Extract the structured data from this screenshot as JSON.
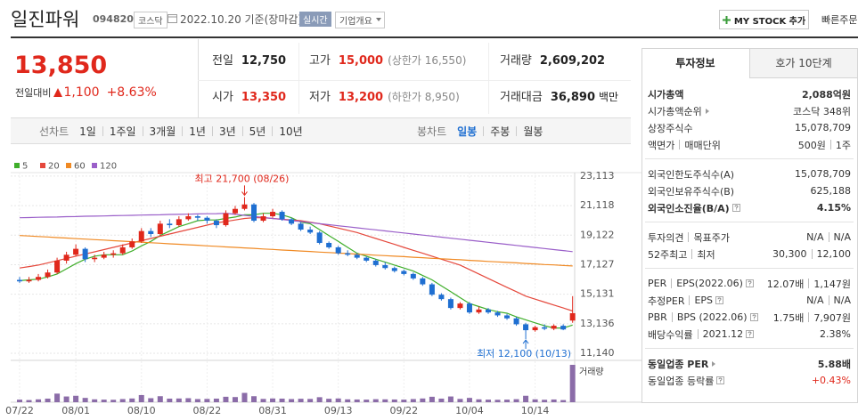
{
  "header": {
    "name": "일진파워",
    "code": "094820",
    "market": "코스닥",
    "date": "2022.10.20 기준(장마감)",
    "realtime": "실시간",
    "company": "기업개요",
    "mystock": "MY STOCK 추가",
    "quick_order": "빠른주문"
  },
  "quote": {
    "price": "13,850",
    "change_label": "전일대비",
    "change": "1,100",
    "change_rate": "+8.63%",
    "items": [
      {
        "label": "전일",
        "value": "12,750"
      },
      {
        "label": "고가",
        "value": "15,000",
        "note": "(상한가 16,550)",
        "up": true
      },
      {
        "label": "거래량",
        "value": "2,609,202"
      },
      {
        "label": "시가",
        "value": "13,350",
        "up": true
      },
      {
        "label": "저가",
        "value": "13,200",
        "note": "(하한가 8,950)",
        "up": true
      },
      {
        "label": "거래대금",
        "value": "36,890",
        "unit": "백만"
      }
    ]
  },
  "toolbar": {
    "line_chart_label": "선차트",
    "periods": [
      "1일",
      "1주일",
      "3개월",
      "1년",
      "3년",
      "5년",
      "10년"
    ],
    "candle_label": "봉차트",
    "candle_periods": [
      "일봉",
      "주봉",
      "월봉"
    ],
    "active_candle_period": 0
  },
  "info": {
    "tabs": [
      "투자정보",
      "호가 10단계"
    ],
    "active_tab": 0,
    "sections": [
      [
        {
          "labels": [
            "시가총액"
          ],
          "values": [
            "2,088억원"
          ],
          "bold": true
        },
        {
          "labels": [
            "시가총액순위"
          ],
          "values": [
            "코스닥 348위"
          ],
          "icon": "arrow"
        },
        {
          "labels": [
            "상장주식수"
          ],
          "values": [
            "15,078,709"
          ]
        },
        {
          "labels": [
            "액면가",
            "매매단위"
          ],
          "values": [
            "500원",
            "1주"
          ]
        }
      ],
      [
        {
          "labels": [
            "외국인한도주식수(A)"
          ],
          "values": [
            "15,078,709"
          ]
        },
        {
          "labels": [
            "외국인보유주식수(B)"
          ],
          "values": [
            "625,188"
          ]
        },
        {
          "labels": [
            "외국인소진율(B/A)"
          ],
          "values": [
            "4.15%"
          ],
          "bold": true,
          "icon": "help"
        }
      ],
      [
        {
          "labels": [
            "투자의견",
            "목표주가"
          ],
          "values": [
            "N/A",
            "N/A"
          ]
        },
        {
          "labels": [
            "52주최고",
            "최저"
          ],
          "values": [
            "30,300",
            "12,100"
          ]
        }
      ],
      [
        {
          "labels": [
            "PER",
            "EPS(2022.06)"
          ],
          "values": [
            "12.07배",
            "1,147원"
          ],
          "icon": "help"
        },
        {
          "labels": [
            "추정PER",
            "EPS"
          ],
          "values": [
            "N/A",
            "N/A"
          ],
          "icon": "help"
        },
        {
          "labels": [
            "PBR",
            "BPS (2022.06)"
          ],
          "values": [
            "1.75배",
            "7,907원"
          ],
          "icon": "help"
        },
        {
          "labels": [
            "배당수익률",
            "2021.12"
          ],
          "values": [
            "2.38%"
          ],
          "icon": "help"
        }
      ],
      [
        {
          "labels": [
            "동일업종 PER"
          ],
          "values": [
            "5.88배"
          ],
          "bold": true,
          "icon": "arrow"
        },
        {
          "labels": [
            "동일업종 등락률"
          ],
          "values": [
            "+0.43%"
          ],
          "icon": "help",
          "color": "#e0281c"
        }
      ]
    ]
  },
  "chart_data": {
    "type": "candlestick",
    "up_color": "#e0281c",
    "down_color": "#1f6fd1",
    "volume_color": "#8b6ca8",
    "x": [
      "07/22",
      null,
      null,
      null,
      null,
      null,
      "08/01",
      null,
      null,
      null,
      null,
      null,
      null,
      "08/10",
      null,
      null,
      null,
      null,
      null,
      null,
      "08/22",
      null,
      null,
      null,
      null,
      null,
      null,
      "08/31",
      null,
      null,
      null,
      null,
      null,
      null,
      "09/13",
      null,
      null,
      null,
      null,
      null,
      null,
      "09/22",
      null,
      null,
      null,
      null,
      null,
      null,
      "10/04",
      null,
      null,
      null,
      null,
      null,
      null,
      "10/14",
      null,
      null,
      null,
      null
    ],
    "candles": [
      [
        16100,
        16300,
        15900,
        16000
      ],
      [
        16000,
        16300,
        15900,
        16100
      ],
      [
        16100,
        16500,
        16000,
        16300
      ],
      [
        16300,
        16800,
        16200,
        16600
      ],
      [
        16600,
        17600,
        16500,
        17400
      ],
      [
        17400,
        18000,
        17200,
        17800
      ],
      [
        17800,
        18500,
        17700,
        18200
      ],
      [
        18200,
        18300,
        17300,
        17500
      ],
      [
        17500,
        17800,
        17300,
        17600
      ],
      [
        17600,
        18000,
        17500,
        17800
      ],
      [
        17800,
        18100,
        17600,
        17900
      ],
      [
        17900,
        18500,
        17800,
        18300
      ],
      [
        18300,
        18900,
        18200,
        18700
      ],
      [
        18700,
        19600,
        18600,
        19400
      ],
      [
        19400,
        19600,
        19000,
        19200
      ],
      [
        19200,
        20100,
        19100,
        19900
      ],
      [
        19900,
        20200,
        19600,
        19800
      ],
      [
        19800,
        20400,
        19700,
        20200
      ],
      [
        20200,
        20600,
        20100,
        20400
      ],
      [
        20400,
        20500,
        20100,
        20300
      ],
      [
        20300,
        20400,
        19900,
        20100
      ],
      [
        20100,
        20200,
        19600,
        19800
      ],
      [
        19800,
        20800,
        19700,
        20600
      ],
      [
        20600,
        21100,
        20500,
        20900
      ],
      [
        20900,
        21700,
        20800,
        21200
      ],
      [
        21200,
        21300,
        20000,
        20100
      ],
      [
        20100,
        20600,
        20000,
        20400
      ],
      [
        20400,
        20900,
        20300,
        20700
      ],
      [
        20700,
        20800,
        20100,
        20200
      ],
      [
        20200,
        20300,
        19800,
        19900
      ],
      [
        19900,
        20000,
        19400,
        19500
      ],
      [
        19500,
        19700,
        19200,
        19300
      ],
      [
        19300,
        19400,
        18500,
        18600
      ],
      [
        18600,
        18700,
        18200,
        18300
      ],
      [
        18300,
        18400,
        17800,
        17900
      ],
      [
        17900,
        18100,
        17700,
        17800
      ],
      [
        17800,
        17900,
        17500,
        17600
      ],
      [
        17600,
        17700,
        17300,
        17400
      ],
      [
        17400,
        17500,
        17000,
        17100
      ],
      [
        17100,
        17300,
        16800,
        16900
      ],
      [
        16900,
        17000,
        16600,
        16700
      ],
      [
        16700,
        16800,
        16400,
        16500
      ],
      [
        16500,
        16600,
        16100,
        16200
      ],
      [
        16200,
        16300,
        15700,
        15800
      ],
      [
        15800,
        15900,
        15000,
        15100
      ],
      [
        15100,
        15200,
        14700,
        14800
      ],
      [
        14800,
        14900,
        14100,
        14200
      ],
      [
        14200,
        14600,
        14100,
        14500
      ],
      [
        14500,
        14600,
        13800,
        13900
      ],
      [
        13900,
        14300,
        13800,
        14100
      ],
      [
        14100,
        14200,
        13800,
        13900
      ],
      [
        13900,
        14000,
        13600,
        13700
      ],
      [
        13700,
        13800,
        13400,
        13500
      ],
      [
        13500,
        13600,
        13000,
        13100
      ],
      [
        13100,
        13200,
        12100,
        12700
      ],
      [
        12700,
        13000,
        12600,
        12900
      ],
      [
        12900,
        13100,
        12700,
        12800
      ],
      [
        12800,
        13100,
        12700,
        13000
      ],
      [
        13000,
        13100,
        12700,
        12750
      ],
      [
        13350,
        15000,
        13200,
        13850
      ]
    ],
    "volumes": [
      180000,
      150000,
      200000,
      250000,
      600000,
      400000,
      450000,
      300000,
      200000,
      180000,
      170000,
      220000,
      260000,
      500000,
      280000,
      420000,
      250000,
      260000,
      280000,
      220000,
      230000,
      250000,
      380000,
      360000,
      650000,
      420000,
      230000,
      260000,
      250000,
      220000,
      240000,
      230000,
      350000,
      240000,
      260000,
      200000,
      190000,
      180000,
      210000,
      200000,
      190000,
      180000,
      220000,
      260000,
      380000,
      250000,
      400000,
      230000,
      300000,
      200000,
      180000,
      170000,
      180000,
      210000,
      450000,
      200000,
      170000,
      190000,
      150000,
      2609202
    ],
    "volume_label": "거래량",
    "series": [
      {
        "name": "5",
        "color": "#3fae2a",
        "values": [
          16050,
          16100,
          16150,
          16300,
          16500,
          16850,
          17200,
          17500,
          17700,
          17800,
          17800,
          17800,
          18050,
          18400,
          18700,
          19100,
          19400,
          19700,
          19900,
          20100,
          20150,
          20150,
          20250,
          20350,
          20500,
          20500,
          20600,
          20600,
          20500,
          20300,
          20000,
          19900,
          19500,
          19100,
          18700,
          18300,
          17900,
          17700,
          17500,
          17300,
          17100,
          16900,
          16700,
          16400,
          16100,
          15700,
          15300,
          14900,
          14500,
          14300,
          14100,
          13950,
          13850,
          13600,
          13400,
          13200,
          13000,
          12850,
          12850,
          13050
        ]
      },
      {
        "name": "20",
        "color": "#e5483c",
        "values": [
          16900,
          17000,
          17100,
          17250,
          17400,
          17550,
          17700,
          17850,
          18000,
          18150,
          18300,
          18450,
          18600,
          18750,
          18900,
          19050,
          19200,
          19350,
          19500,
          19650,
          19800,
          19950,
          20050,
          20150,
          20250,
          20300,
          20300,
          20250,
          20200,
          20150,
          20100,
          20000,
          19900,
          19750,
          19600,
          19450,
          19300,
          19100,
          18900,
          18700,
          18500,
          18300,
          18100,
          17900,
          17700,
          17500,
          17300,
          17100,
          16800,
          16500,
          16200,
          15900,
          15600,
          15300,
          15000,
          14800,
          14600,
          14400,
          14200,
          14000
        ]
      },
      {
        "name": "60",
        "color": "#f08a24",
        "values": [
          19100,
          19070,
          19030,
          19000,
          18960,
          18930,
          18890,
          18860,
          18820,
          18790,
          18750,
          18720,
          18680,
          18650,
          18610,
          18580,
          18540,
          18510,
          18470,
          18440,
          18400,
          18370,
          18330,
          18300,
          18260,
          18230,
          18190,
          18160,
          18120,
          18090,
          18050,
          18020,
          17980,
          17950,
          17910,
          17880,
          17840,
          17810,
          17770,
          17740,
          17700,
          17670,
          17630,
          17600,
          17560,
          17530,
          17490,
          17460,
          17420,
          17390,
          17350,
          17320,
          17280,
          17250,
          17210,
          17180,
          17140,
          17110,
          17070,
          17040
        ]
      },
      {
        "name": "120",
        "color": "#9a5fc9",
        "values": [
          20300,
          20310,
          20330,
          20340,
          20350,
          20370,
          20380,
          20400,
          20410,
          20420,
          20440,
          20450,
          20460,
          20480,
          20490,
          20500,
          20520,
          20530,
          20540,
          20560,
          20570,
          20580,
          20600,
          20530,
          20460,
          20390,
          20320,
          20250,
          20180,
          20110,
          20040,
          19970,
          19900,
          19830,
          19760,
          19690,
          19620,
          19550,
          19480,
          19410,
          19340,
          19270,
          19200,
          19130,
          19060,
          18990,
          18920,
          18850,
          18780,
          18710,
          18640,
          18570,
          18500,
          18430,
          18360,
          18290,
          18220,
          18150,
          18080,
          18010
        ]
      }
    ],
    "high_label": "최고 21,700 (08/26)",
    "low_label": "최저 12,100 (10/13)",
    "ylim": [
      10660,
      23590
    ],
    "yticks": [
      {
        "value": 23113,
        "label": "23,113"
      },
      {
        "value": 21118,
        "label": "21,118"
      },
      {
        "value": 19122,
        "label": "19,122"
      },
      {
        "value": 17127,
        "label": "17,127"
      },
      {
        "value": 15131,
        "label": "15,131"
      },
      {
        "value": 13136,
        "label": "13,136"
      },
      {
        "value": 11140,
        "label": "11,140"
      }
    ],
    "grid": true
  }
}
